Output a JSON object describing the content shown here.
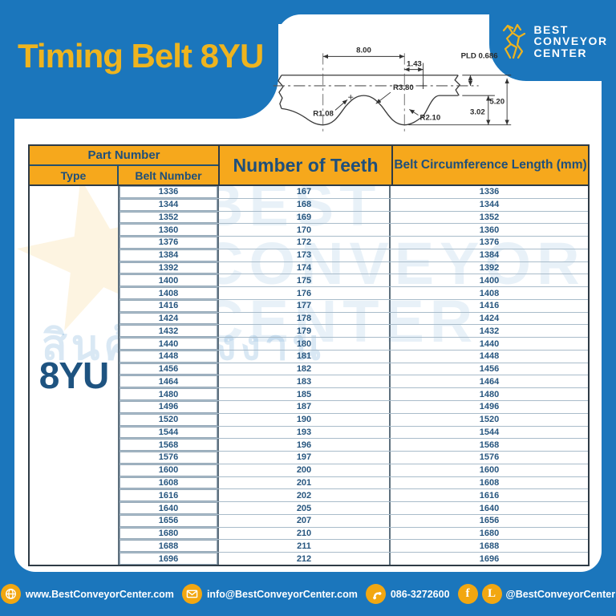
{
  "title": "Timing Belt 8YU",
  "logo": {
    "line1": "BEST",
    "line2": "CONVEYOR",
    "line3": "CENTER"
  },
  "diagram": {
    "dim_pitch": "8.00",
    "dim_offset": "1.43",
    "dim_pld": "PLD 0.686",
    "dim_r_flank": "R3.80",
    "dim_r_tip": "R1.08",
    "dim_r_root": "R2.10",
    "dim_tooth_height": "3.02",
    "dim_total_height": "5.20"
  },
  "table": {
    "header": {
      "part_number": "Part Number",
      "type": "Type",
      "belt_number": "Belt Number",
      "teeth": "Number of Teeth",
      "circumference": "Belt Circumference Length (mm)"
    },
    "type_value": "8YU",
    "rows": [
      {
        "belt": "1336",
        "teeth": "167",
        "length": "1336"
      },
      {
        "belt": "1344",
        "teeth": "168",
        "length": "1344"
      },
      {
        "belt": "1352",
        "teeth": "169",
        "length": "1352"
      },
      {
        "belt": "1360",
        "teeth": "170",
        "length": "1360"
      },
      {
        "belt": "1376",
        "teeth": "172",
        "length": "1376"
      },
      {
        "belt": "1384",
        "teeth": "173",
        "length": "1384"
      },
      {
        "belt": "1392",
        "teeth": "174",
        "length": "1392"
      },
      {
        "belt": "1400",
        "teeth": "175",
        "length": "1400"
      },
      {
        "belt": "1408",
        "teeth": "176",
        "length": "1408"
      },
      {
        "belt": "1416",
        "teeth": "177",
        "length": "1416"
      },
      {
        "belt": "1424",
        "teeth": "178",
        "length": "1424"
      },
      {
        "belt": "1432",
        "teeth": "179",
        "length": "1432"
      },
      {
        "belt": "1440",
        "teeth": "180",
        "length": "1440"
      },
      {
        "belt": "1448",
        "teeth": "181",
        "length": "1448"
      },
      {
        "belt": "1456",
        "teeth": "182",
        "length": "1456"
      },
      {
        "belt": "1464",
        "teeth": "183",
        "length": "1464"
      },
      {
        "belt": "1480",
        "teeth": "185",
        "length": "1480"
      },
      {
        "belt": "1496",
        "teeth": "187",
        "length": "1496"
      },
      {
        "belt": "1520",
        "teeth": "190",
        "length": "1520"
      },
      {
        "belt": "1544",
        "teeth": "193",
        "length": "1544"
      },
      {
        "belt": "1568",
        "teeth": "196",
        "length": "1568"
      },
      {
        "belt": "1576",
        "teeth": "197",
        "length": "1576"
      },
      {
        "belt": "1600",
        "teeth": "200",
        "length": "1600"
      },
      {
        "belt": "1608",
        "teeth": "201",
        "length": "1608"
      },
      {
        "belt": "1616",
        "teeth": "202",
        "length": "1616"
      },
      {
        "belt": "1640",
        "teeth": "205",
        "length": "1640"
      },
      {
        "belt": "1656",
        "teeth": "207",
        "length": "1656"
      },
      {
        "belt": "1680",
        "teeth": "210",
        "length": "1680"
      },
      {
        "belt": "1688",
        "teeth": "211",
        "length": "1688"
      },
      {
        "belt": "1696",
        "teeth": "212",
        "length": "1696"
      }
    ]
  },
  "watermark": {
    "star": "★",
    "line1": "BEST",
    "line2": "CONVEYOR",
    "line3": "CENTER",
    "thai_text": "สินค้าโรงงาน"
  },
  "footer": {
    "website": "www.BestConveyorCenter.com",
    "email": "info@BestConveyorCenter.com",
    "phone": "086-3272600",
    "social": "@BestConveyorCenter",
    "facebook_glyph": "f",
    "line_glyph": "L"
  },
  "colors": {
    "page_blue": "#1B76BC",
    "header_amber": "#F6A81C",
    "title_yellow": "#EEB41F",
    "navy_text": "#1E4F7B",
    "number_blue": "#27567F",
    "footer_icon": "#F2A711"
  }
}
